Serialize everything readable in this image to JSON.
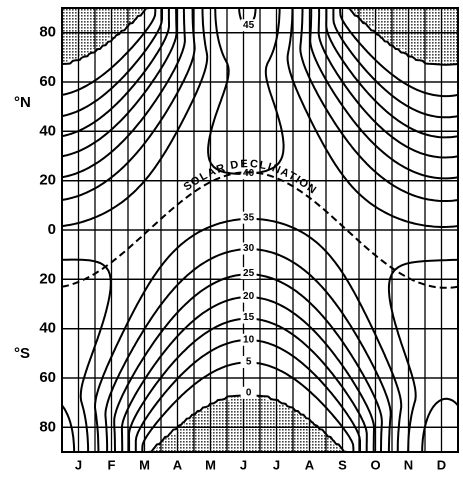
{
  "chart_data": {
    "type": "contour",
    "categories": [
      "J",
      "F",
      "M",
      "A",
      "M",
      "J",
      "J",
      "A",
      "S",
      "O",
      "N",
      "D"
    ],
    "levels": [
      0,
      5,
      10,
      15,
      20,
      25,
      30,
      35,
      40,
      45
    ],
    "ylim": [
      -90,
      90
    ],
    "yticks": [
      80,
      60,
      40,
      20,
      0,
      {
        "value": -20,
        "label": "20"
      },
      {
        "value": -40,
        "label": "40"
      },
      {
        "value": -60,
        "label": "60"
      },
      {
        "value": -80,
        "label": "80"
      }
    ],
    "y_label_north": "°N",
    "y_label_south": "°S",
    "annotation": "SOLAR DECLINATION",
    "grid": true,
    "color": "#000000"
  }
}
